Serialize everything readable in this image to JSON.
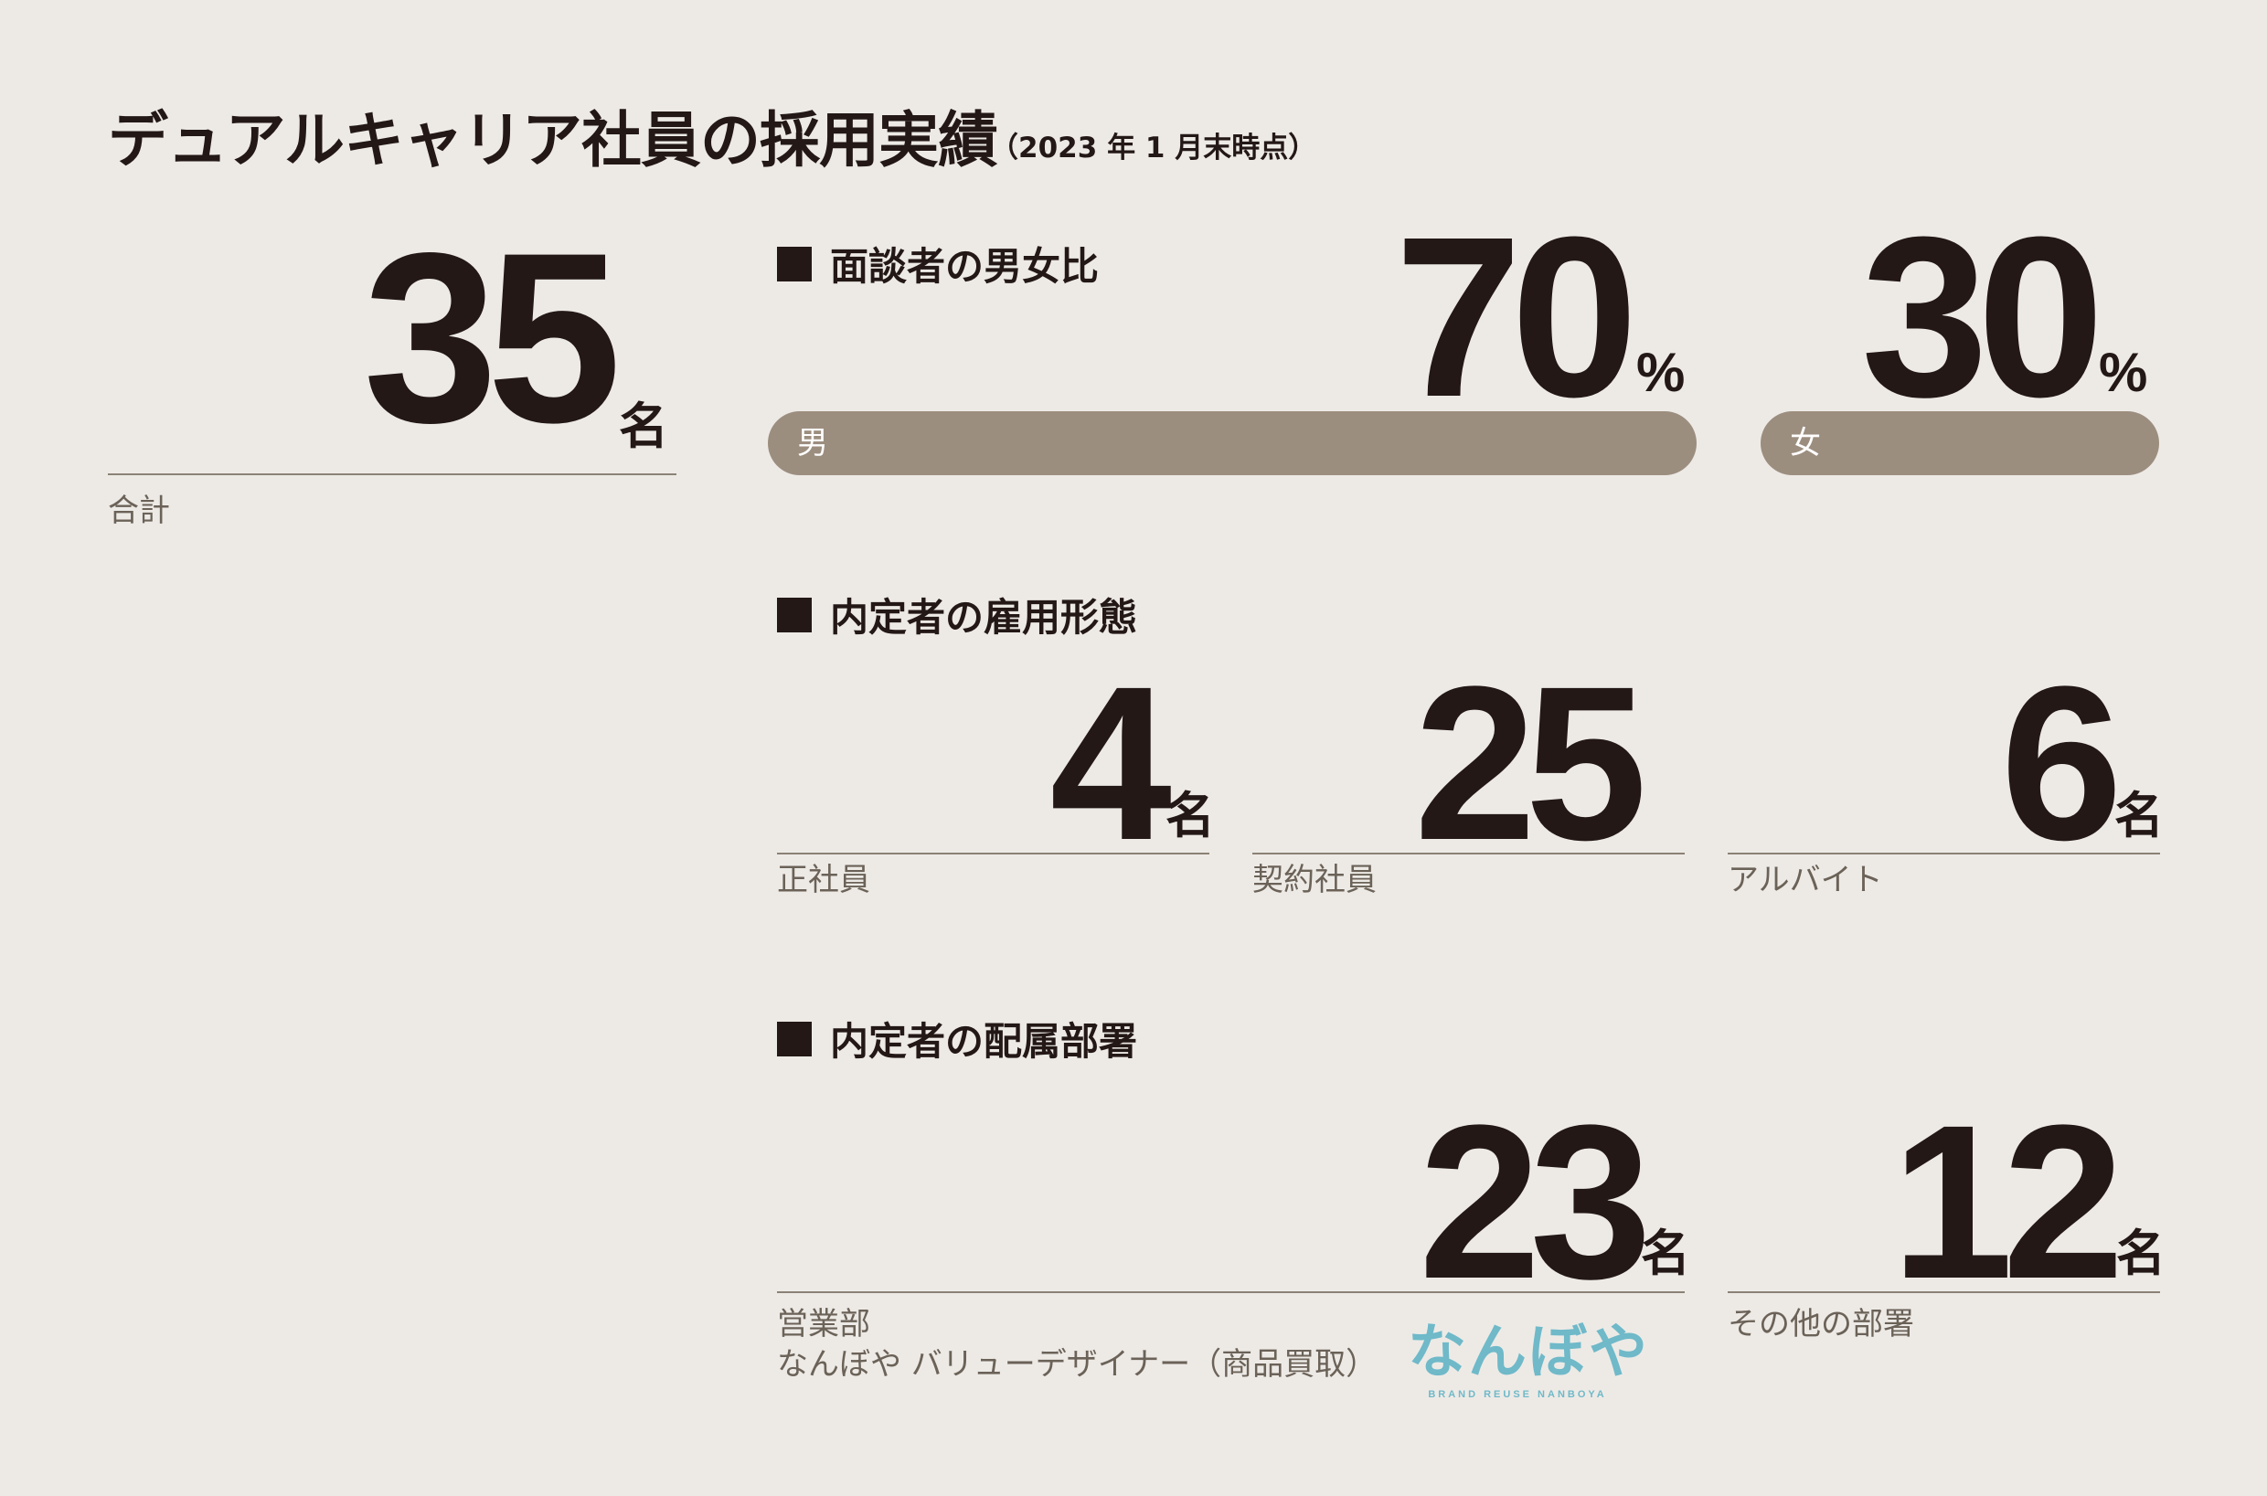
{
  "title": {
    "main": "デュアルキャリア社員の採用実績",
    "sub": "（2023 年 1 月末時点）"
  },
  "total": {
    "value": "35",
    "unit": "名",
    "label": "合計"
  },
  "gender": {
    "section_title": "面談者の男女比",
    "male": {
      "value": "70",
      "unit": "%",
      "label": "男"
    },
    "female": {
      "value": "30",
      "unit": "%",
      "label": "女"
    }
  },
  "employment": {
    "section_title": "内定者の雇用形態",
    "items": [
      {
        "value": "4",
        "unit": "名",
        "label": "正社員"
      },
      {
        "value": "25",
        "unit": "",
        "label": "契約社員"
      },
      {
        "value": "6",
        "unit": "名",
        "label": "アルバイト"
      }
    ]
  },
  "department": {
    "section_title": "内定者の配属部署",
    "items": [
      {
        "value": "23",
        "unit": "名",
        "label_line1": "営業部",
        "label_line2": "なんぼや バリューデザイナー（商品買取）"
      },
      {
        "value": "12",
        "unit": "名",
        "label_line1": "その他の部署"
      }
    ]
  },
  "logo": {
    "text": "なんぼや",
    "sub": "BRAND REUSE NANBOYA",
    "color": "#6fb9c9"
  },
  "colors": {
    "background": "#edeae6",
    "text": "#231815",
    "bar": "#9c8e7f",
    "rule": "#8a8275"
  },
  "chart_data": [
    {
      "type": "bar",
      "title": "面談者の男女比",
      "categories": [
        "男",
        "女"
      ],
      "values": [
        70,
        30
      ],
      "unit": "%"
    },
    {
      "type": "table",
      "title": "内定者の雇用形態",
      "categories": [
        "正社員",
        "契約社員",
        "アルバイト"
      ],
      "values": [
        4,
        25,
        6
      ],
      "unit": "名"
    },
    {
      "type": "table",
      "title": "内定者の配属部署",
      "categories": [
        "営業部 なんぼや バリューデザイナー（商品買取）",
        "その他の部署"
      ],
      "values": [
        23,
        12
      ],
      "unit": "名"
    },
    {
      "type": "table",
      "title": "合計",
      "values": [
        35
      ],
      "unit": "名"
    }
  ]
}
